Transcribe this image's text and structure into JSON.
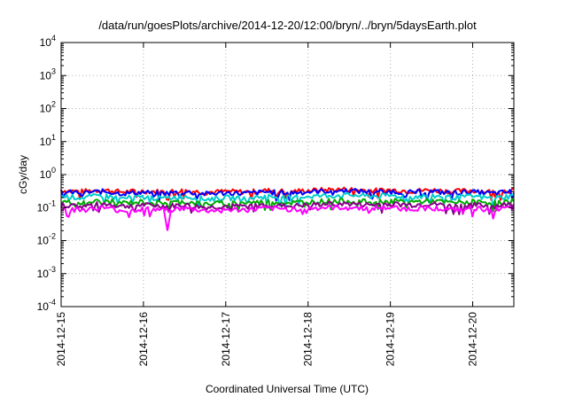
{
  "chart_data": {
    "type": "line",
    "title": "/data/run/goesPlots/archive/2014-12-20/12:00/bryn/../bryn/5daysEarth.plot",
    "xlabel": "Coordinated Universal Time (UTC)",
    "ylabel": "cGy/day",
    "y_scale": "log",
    "ylim": [
      0.0001,
      10000
    ],
    "y_ticks": [
      {
        "value": 0.0001,
        "base": "10",
        "exp": "-4"
      },
      {
        "value": 0.001,
        "base": "10",
        "exp": "-3"
      },
      {
        "value": 0.01,
        "base": "10",
        "exp": "-2"
      },
      {
        "value": 0.1,
        "base": "10",
        "exp": "-1"
      },
      {
        "value": 1,
        "base": "10",
        "exp": "0"
      },
      {
        "value": 10,
        "base": "10",
        "exp": "1"
      },
      {
        "value": 100,
        "base": "10",
        "exp": "2"
      },
      {
        "value": 1000,
        "base": "10",
        "exp": "3"
      },
      {
        "value": 10000,
        "base": "10",
        "exp": "4"
      }
    ],
    "xlim": [
      "2014-12-15 00:00",
      "2014-12-20 12:00"
    ],
    "x_ticks": [
      "2014-12-15",
      "2014-12-16",
      "2014-12-17",
      "2014-12-18",
      "2014-12-19",
      "2014-12-20"
    ],
    "grid": true,
    "x": [
      "2014-12-15 00:00",
      "2014-12-15 06:00",
      "2014-12-15 12:00",
      "2014-12-15 18:00",
      "2014-12-16 00:00",
      "2014-12-16 06:00",
      "2014-12-16 12:00",
      "2014-12-16 18:00",
      "2014-12-17 00:00",
      "2014-12-17 06:00",
      "2014-12-17 12:00",
      "2014-12-17 18:00",
      "2014-12-18 00:00",
      "2014-12-18 06:00",
      "2014-12-18 12:00",
      "2014-12-18 18:00",
      "2014-12-19 00:00",
      "2014-12-19 06:00",
      "2014-12-19 12:00",
      "2014-12-19 18:00",
      "2014-12-20 00:00",
      "2014-12-20 06:00",
      "2014-12-20 12:00"
    ],
    "series": [
      {
        "color": "#ff0000",
        "values": [
          0.33,
          0.31,
          0.34,
          0.3,
          0.32,
          0.3,
          0.33,
          0.29,
          0.31,
          0.3,
          0.33,
          0.31,
          0.33,
          0.35,
          0.36,
          0.33,
          0.34,
          0.32,
          0.34,
          0.31,
          0.33,
          0.3,
          0.34
        ]
      },
      {
        "color": "#0000ff",
        "values": [
          0.3,
          0.28,
          0.31,
          0.27,
          0.29,
          0.27,
          0.3,
          0.26,
          0.28,
          0.27,
          0.3,
          0.28,
          0.3,
          0.32,
          0.33,
          0.3,
          0.31,
          0.29,
          0.31,
          0.28,
          0.3,
          0.27,
          0.31
        ]
      },
      {
        "color": "#00cccc",
        "values": [
          0.22,
          0.2,
          0.23,
          0.19,
          0.21,
          0.19,
          0.22,
          0.18,
          0.2,
          0.19,
          0.22,
          0.2,
          0.22,
          0.23,
          0.24,
          0.22,
          0.23,
          0.21,
          0.23,
          0.2,
          0.22,
          0.19,
          0.23
        ]
      },
      {
        "color": "#00aa00",
        "values": [
          0.15,
          0.14,
          0.16,
          0.14,
          0.15,
          0.14,
          0.15,
          0.13,
          0.14,
          0.14,
          0.15,
          0.14,
          0.15,
          0.16,
          0.16,
          0.15,
          0.16,
          0.15,
          0.16,
          0.14,
          0.15,
          0.14,
          0.16
        ]
      },
      {
        "color": "#880088",
        "values": [
          0.12,
          0.11,
          0.13,
          0.11,
          0.12,
          0.11,
          0.12,
          0.1,
          0.11,
          0.11,
          0.12,
          0.11,
          0.12,
          0.13,
          0.13,
          0.12,
          0.13,
          0.12,
          0.13,
          0.11,
          0.12,
          0.11,
          0.13
        ]
      },
      {
        "color": "#ff00ff",
        "values": [
          0.095,
          0.085,
          0.1,
          0.08,
          0.09,
          0.085,
          0.095,
          0.08,
          0.085,
          0.085,
          0.095,
          0.09,
          0.095,
          0.1,
          0.1,
          0.095,
          0.1,
          0.09,
          0.1,
          0.085,
          0.095,
          0.085,
          0.1
        ]
      }
    ],
    "annotations": [
      {
        "series": 5,
        "x": "2014-12-16 07:00",
        "y": 0.02
      }
    ]
  }
}
